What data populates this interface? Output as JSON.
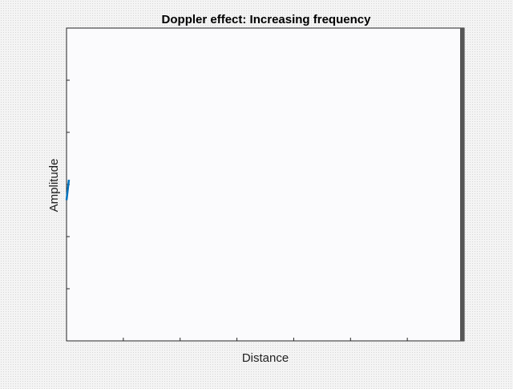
{
  "chart_data": {
    "type": "line",
    "title": "Doppler effect: Increasing frequency",
    "xlabel": "Distance",
    "ylabel": "Amplitude",
    "xlim": [
      0,
      1
    ],
    "ylim": [
      -1,
      1
    ],
    "x_tick_count": 7,
    "y_tick_count": 6,
    "tick_labels_shown": false,
    "grid": false,
    "series_color": "#0072BD",
    "series": [
      {
        "x": [
          0.0,
          0.006
        ],
        "y": [
          -0.1,
          0.03
        ]
      }
    ],
    "right_edge_marker_color": "#555555"
  }
}
